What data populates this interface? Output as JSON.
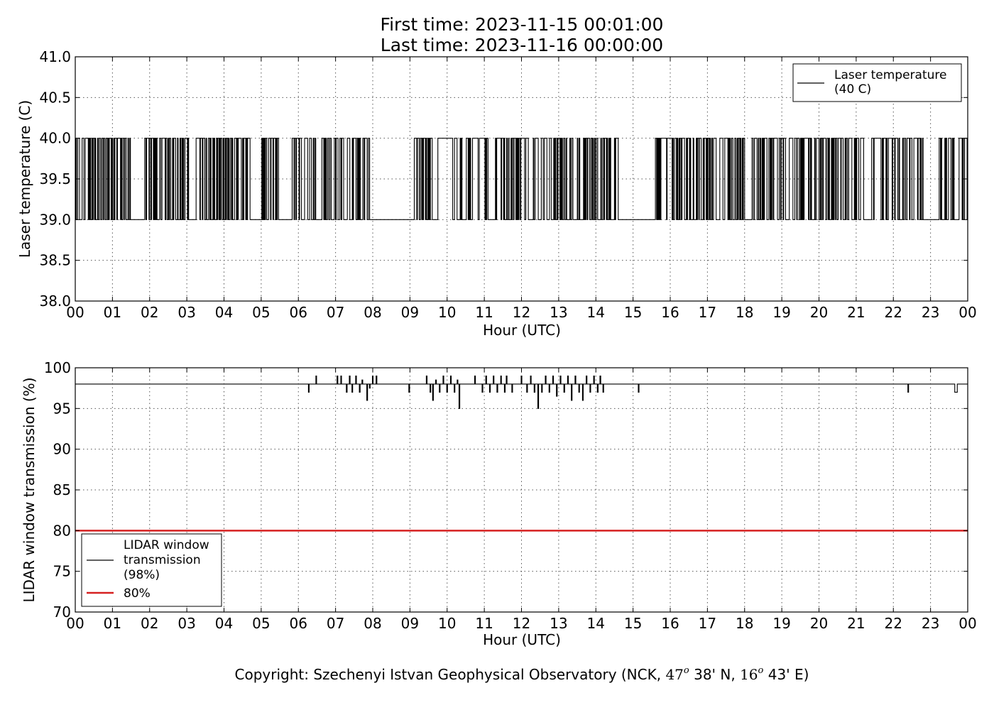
{
  "header": {
    "line1": "First time: 2023-11-15 00:01:00",
    "line2": "Last time: 2023-11-16 00:00:00"
  },
  "footer": {
    "copyright_pre": "Copyright: Szechenyi Istvan Geophysical Observatory (NCK, ",
    "lat_deg": "47",
    "lat_rest": " 38' N, ",
    "lon_deg": "16",
    "lon_rest": " 43' E)",
    "deg_sup": "o"
  },
  "colors": {
    "line": "#000000",
    "threshold": "#d62020",
    "grid": "#555555"
  },
  "chart_data": [
    {
      "type": "line",
      "ylabel": "Laser temperature (C)",
      "xlabel": "Hour (UTC)",
      "xlim": [
        0,
        24
      ],
      "ylim": [
        38.0,
        41.0
      ],
      "yticks": [
        "38.0",
        "38.5",
        "39.0",
        "39.5",
        "40.0",
        "40.5",
        "41.0"
      ],
      "ytick_values": [
        38.0,
        38.5,
        39.0,
        39.5,
        40.0,
        40.5,
        41.0
      ],
      "xticks": [
        "00",
        "01",
        "02",
        "03",
        "04",
        "05",
        "06",
        "07",
        "08",
        "09",
        "10",
        "11",
        "12",
        "13",
        "14",
        "15",
        "16",
        "17",
        "18",
        "19",
        "20",
        "21",
        "22",
        "23",
        "00"
      ],
      "grid": true,
      "legend_position": "top-right",
      "legend": [
        "Laser temperature",
        "(40 C)"
      ],
      "series": [
        {
          "name": "Laser temperature (40 C)",
          "color": "#000000",
          "low": 39.0,
          "high": 40.0,
          "toggle_segments": [
            [
              0.0,
              1.48
            ],
            [
              1.85,
              3.05
            ],
            [
              3.2,
              4.7
            ],
            [
              5.0,
              5.45
            ],
            [
              5.8,
              6.45
            ],
            [
              6.6,
              7.2
            ],
            [
              7.4,
              7.9
            ],
            [
              9.1,
              9.6
            ],
            [
              10.2,
              11.1
            ],
            [
              11.3,
              12.2
            ],
            [
              12.3,
              13.45
            ],
            [
              13.5,
              14.4
            ],
            [
              14.5,
              14.6
            ],
            [
              15.6,
              16.65
            ],
            [
              16.7,
              18.0
            ],
            [
              18.2,
              19.1
            ],
            [
              19.2,
              21.2
            ],
            [
              21.4,
              22.85
            ],
            [
              23.2,
              24.0
            ]
          ],
          "high_plateaus": [
            [
              7.3,
              7.38
            ],
            [
              9.75,
              10.15
            ],
            [
              21.5,
              21.62
            ]
          ],
          "low_gaps": [
            [
              8.05,
              9.05
            ],
            [
              14.8,
              15.58
            ]
          ]
        }
      ]
    },
    {
      "type": "line",
      "ylabel": "LIDAR window transmission (%)",
      "xlabel": "Hour (UTC)",
      "xlim": [
        0,
        24
      ],
      "ylim": [
        70,
        100
      ],
      "yticks": [
        "70",
        "75",
        "80",
        "85",
        "90",
        "95",
        "100"
      ],
      "ytick_values": [
        70,
        75,
        80,
        85,
        90,
        95,
        100
      ],
      "xticks": [
        "00",
        "01",
        "02",
        "03",
        "04",
        "05",
        "06",
        "07",
        "08",
        "09",
        "10",
        "11",
        "12",
        "13",
        "14",
        "15",
        "16",
        "17",
        "18",
        "19",
        "20",
        "21",
        "22",
        "23",
        "00"
      ],
      "grid": true,
      "legend_position": "bottom-left",
      "legend": [
        "LIDAR window",
        "transmission",
        "(98%)",
        "80%"
      ],
      "series": [
        {
          "name": "LIDAR window transmission (98%)",
          "color": "#000000",
          "baseline": 98,
          "excursions": [
            [
              6.28,
              97
            ],
            [
              6.48,
              99
            ],
            [
              7.05,
              99
            ],
            [
              7.15,
              99
            ],
            [
              7.3,
              97
            ],
            [
              7.38,
              99
            ],
            [
              7.45,
              97
            ],
            [
              7.55,
              99
            ],
            [
              7.65,
              97
            ],
            [
              7.72,
              98.5
            ],
            [
              7.85,
              96
            ],
            [
              7.92,
              97.5
            ],
            [
              8.0,
              99
            ],
            [
              8.1,
              99
            ],
            [
              8.98,
              97
            ],
            [
              9.45,
              99
            ],
            [
              9.55,
              97
            ],
            [
              9.62,
              96
            ],
            [
              9.7,
              98.5
            ],
            [
              9.8,
              97
            ],
            [
              9.9,
              99
            ],
            [
              10.0,
              97
            ],
            [
              10.1,
              99
            ],
            [
              10.2,
              97
            ],
            [
              10.28,
              98.5
            ],
            [
              10.33,
              95
            ],
            [
              10.75,
              99
            ],
            [
              10.95,
              97
            ],
            [
              11.05,
              99
            ],
            [
              11.15,
              97
            ],
            [
              11.25,
              99
            ],
            [
              11.35,
              97
            ],
            [
              11.45,
              99
            ],
            [
              11.55,
              97
            ],
            [
              11.6,
              99
            ],
            [
              11.75,
              97
            ],
            [
              12.0,
              99
            ],
            [
              12.15,
              97
            ],
            [
              12.25,
              99
            ],
            [
              12.35,
              97
            ],
            [
              12.45,
              95
            ],
            [
              12.55,
              97
            ],
            [
              12.65,
              99
            ],
            [
              12.75,
              97
            ],
            [
              12.85,
              99
            ],
            [
              12.95,
              96.5
            ],
            [
              13.05,
              99
            ],
            [
              13.15,
              97
            ],
            [
              13.25,
              99
            ],
            [
              13.35,
              96
            ],
            [
              13.45,
              99
            ],
            [
              13.55,
              97
            ],
            [
              13.65,
              96
            ],
            [
              13.75,
              99
            ],
            [
              13.85,
              97
            ],
            [
              13.95,
              99
            ],
            [
              14.05,
              97
            ],
            [
              14.12,
              99
            ],
            [
              14.2,
              97
            ],
            [
              15.15,
              97
            ],
            [
              22.4,
              97
            ]
          ],
          "dip_plateau": [
            23.65,
            23.72,
            97
          ]
        },
        {
          "name": "80%",
          "color": "#d62020",
          "constant": 80
        }
      ]
    }
  ]
}
